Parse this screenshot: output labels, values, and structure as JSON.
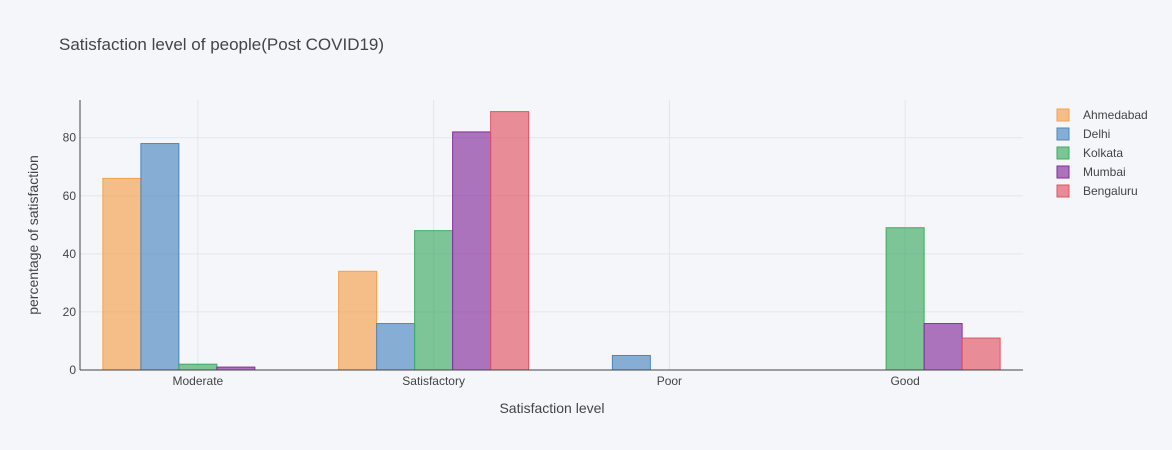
{
  "chart_data": {
    "type": "bar",
    "title": "Satisfaction level of people(Post COVID19)",
    "xlabel": "Satisfaction level",
    "ylabel": "percentage of satisfaction",
    "categories": [
      "Moderate",
      "Satisfactory",
      "Poor",
      "Good"
    ],
    "ylim": [
      0,
      93
    ],
    "yticks": [
      0,
      20,
      40,
      60,
      80
    ],
    "grid": true,
    "legend_position": "top-right",
    "series": [
      {
        "name": "Ahmedabad",
        "color": "#f5a04b",
        "values": [
          66,
          34,
          0,
          0
        ]
      },
      {
        "name": "Delhi",
        "color": "#4a86c0",
        "values": [
          78,
          16,
          5,
          0
        ]
      },
      {
        "name": "Kolkata",
        "color": "#3cab62",
        "values": [
          2,
          48,
          0,
          49
        ]
      },
      {
        "name": "Mumbai",
        "color": "#842c9c",
        "values": [
          1,
          82,
          0,
          16
        ]
      },
      {
        "name": "Bengaluru",
        "color": "#e05462",
        "values": [
          0,
          89,
          0,
          11
        ]
      }
    ]
  }
}
